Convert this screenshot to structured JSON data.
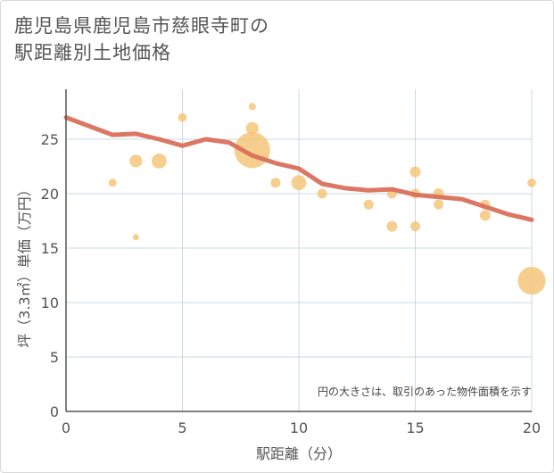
{
  "title_line1": "鹿児島県鹿児島市慈眼寺町の",
  "title_line2": "駅距離別土地価格",
  "note": "円の大きさは、取引のあった物件面積を示す",
  "colors": {
    "bubble": "#f4c16f",
    "line": "#d9705a",
    "grid": "#c9d8e2",
    "axis": "#555555"
  },
  "chart_data": {
    "type": "scatter",
    "xlabel": "駅距離（分）",
    "ylabel": "坪（3.3㎡）単価（万円）",
    "xlim": [
      0,
      20
    ],
    "ylim": [
      0,
      28
    ],
    "xticks": [
      0,
      5,
      10,
      15,
      20
    ],
    "yticks": [
      0,
      5,
      10,
      15,
      20,
      25
    ],
    "grid": true,
    "bubbles": [
      {
        "x": 2,
        "y": 21,
        "size": 1
      },
      {
        "x": 3,
        "y": 23,
        "size": 2.5
      },
      {
        "x": 3,
        "y": 16,
        "size": 0.6
      },
      {
        "x": 4,
        "y": 23,
        "size": 3.5
      },
      {
        "x": 5,
        "y": 27,
        "size": 1.2
      },
      {
        "x": 8,
        "y": 28,
        "size": 0.8
      },
      {
        "x": 8,
        "y": 26,
        "size": 2.5
      },
      {
        "x": 8,
        "y": 24,
        "size": 20
      },
      {
        "x": 9,
        "y": 21,
        "size": 1.5
      },
      {
        "x": 10,
        "y": 21,
        "size": 3.5
      },
      {
        "x": 11,
        "y": 20,
        "size": 1.5
      },
      {
        "x": 13,
        "y": 19,
        "size": 1.5
      },
      {
        "x": 14,
        "y": 20,
        "size": 1.5
      },
      {
        "x": 14,
        "y": 17,
        "size": 1.8
      },
      {
        "x": 15,
        "y": 22,
        "size": 1.8
      },
      {
        "x": 15,
        "y": 20,
        "size": 1.5
      },
      {
        "x": 15,
        "y": 17,
        "size": 1.5
      },
      {
        "x": 16,
        "y": 20,
        "size": 1.8
      },
      {
        "x": 16,
        "y": 19,
        "size": 1.5
      },
      {
        "x": 18,
        "y": 19,
        "size": 1.5
      },
      {
        "x": 18,
        "y": 18,
        "size": 1.8
      },
      {
        "x": 20,
        "y": 21,
        "size": 1.2
      },
      {
        "x": 20,
        "y": 12,
        "size": 12
      }
    ],
    "trend": {
      "x": [
        0,
        1,
        2,
        3,
        4,
        5,
        6,
        7,
        8,
        9,
        10,
        11,
        12,
        13,
        14,
        15,
        16,
        17,
        18,
        19,
        20
      ],
      "y": [
        27,
        26.2,
        25.4,
        25.5,
        25.0,
        24.4,
        25.0,
        24.7,
        23.5,
        22.8,
        22.3,
        20.9,
        20.5,
        20.3,
        20.4,
        19.9,
        19.7,
        19.5,
        18.8,
        18.1,
        17.6
      ]
    }
  }
}
